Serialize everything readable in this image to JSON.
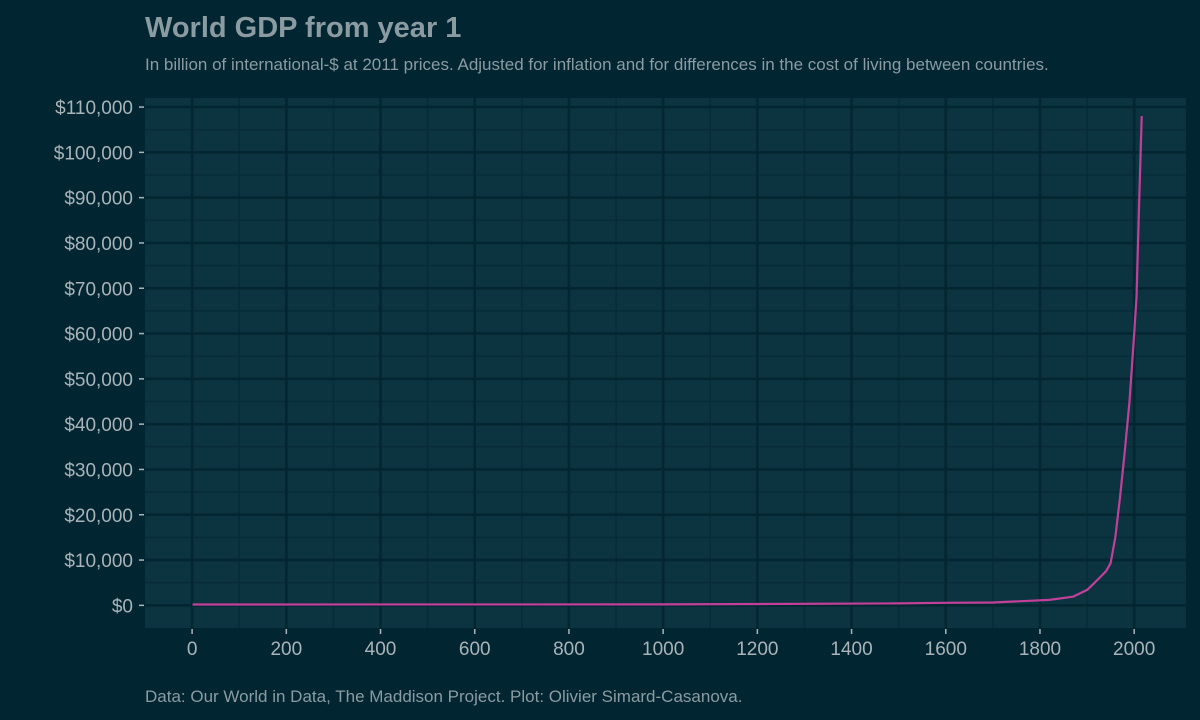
{
  "chart_data": {
    "type": "line",
    "title": "World GDP from year 1",
    "subtitle": "In billion of international-$ at 2011 prices. Adjusted for inflation and for differences in the cost of living between countries.",
    "caption": "Data: Our World in Data, The Maddison Project. Plot: Olivier Simard-Casanova.",
    "xlabel": "",
    "ylabel": "",
    "xlim": [
      -100,
      2110
    ],
    "ylim": [
      -5000,
      112000
    ],
    "x_ticks": [
      0,
      200,
      400,
      600,
      800,
      1000,
      1200,
      1400,
      1600,
      1800,
      2000
    ],
    "x_tick_labels": [
      "0",
      "200",
      "400",
      "600",
      "800",
      "1000",
      "1200",
      "1400",
      "1600",
      "1800",
      "2000"
    ],
    "y_ticks": [
      0,
      10000,
      20000,
      30000,
      40000,
      50000,
      60000,
      70000,
      80000,
      90000,
      100000,
      110000
    ],
    "y_tick_labels": [
      "$0",
      "$10,000",
      "$20,000",
      "$30,000",
      "$40,000",
      "$50,000",
      "$60,000",
      "$70,000",
      "$80,000",
      "$90,000",
      "$100,000",
      "$110,000"
    ],
    "grid": true,
    "colors": {
      "background": "#022532",
      "panel": "#0b3340",
      "grid_major": "#032631",
      "grid_minor": "#072c38",
      "line": "#c2409a",
      "text": "#8a9ba1"
    },
    "series": [
      {
        "x": [
          1,
          1000,
          1500,
          1600,
          1700,
          1820,
          1870,
          1900,
          1913,
          1940,
          1950,
          1960,
          1970,
          1980,
          1990,
          2000,
          2005,
          2010,
          2016
        ],
        "values": [
          180,
          210,
          430,
          560,
          640,
          1200,
          1900,
          3400,
          4700,
          7500,
          9300,
          15000,
          24000,
          34000,
          45000,
          60000,
          68000,
          87000,
          108000
        ]
      }
    ]
  }
}
